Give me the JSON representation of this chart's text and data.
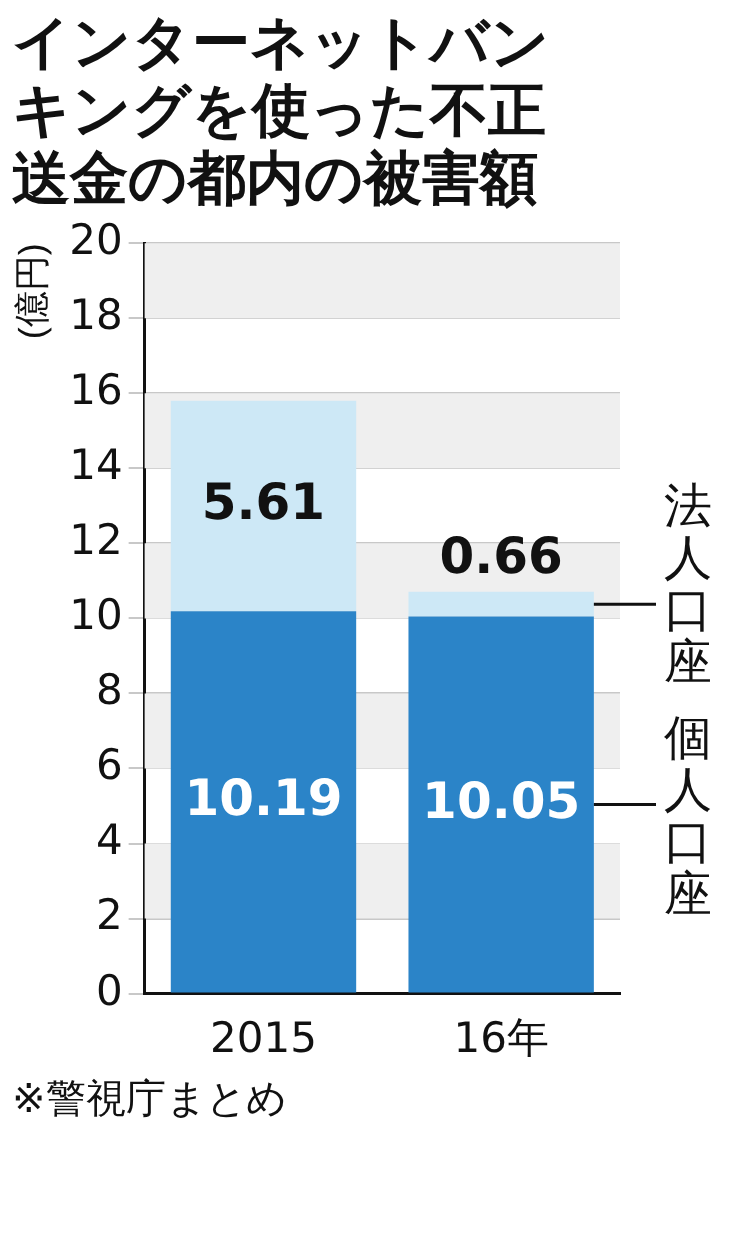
{
  "chart_data": {
    "type": "bar",
    "title": "インターネットバンキングを使った不正送金の都内の被害額",
    "ylabel": "(億円)",
    "categories": [
      "2015",
      "16年"
    ],
    "stacked": true,
    "series": [
      {
        "name": "個人口座",
        "color": "#2b84c8",
        "values": [
          10.19,
          10.05
        ]
      },
      {
        "name": "法人口座",
        "color": "#cde8f6",
        "values": [
          5.61,
          0.66
        ]
      }
    ],
    "ylim": [
      0,
      20
    ],
    "yticks": [
      0,
      2,
      4,
      6,
      8,
      10,
      12,
      14,
      16,
      18,
      20
    ],
    "grid": "y",
    "data_labels": true,
    "legend": false,
    "annotations": [
      "※警視庁まとめ"
    ]
  }
}
